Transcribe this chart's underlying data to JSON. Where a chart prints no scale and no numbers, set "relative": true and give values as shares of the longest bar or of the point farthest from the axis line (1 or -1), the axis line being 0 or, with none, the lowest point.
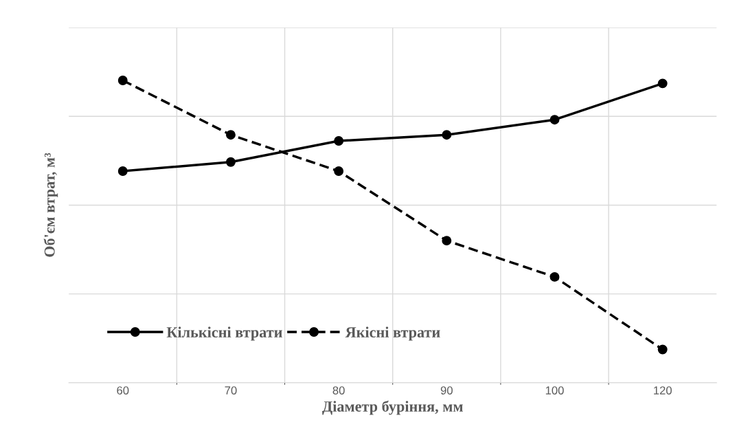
{
  "chart_data": {
    "type": "line",
    "relative": true,
    "xlabel": "Діаметр буріння, мм",
    "ylabel": "Об'єм втрат, м³",
    "categories": [
      "60",
      "70",
      "80",
      "90",
      "100",
      "120"
    ],
    "series": [
      {
        "name": "Кількісні втрати",
        "color": "#000000",
        "line_style": "solid",
        "values": [
          0.7,
          0.73,
          0.8,
          0.82,
          0.87,
          0.99
        ]
      },
      {
        "name": "Якісні втрати",
        "color": "#000000",
        "line_style": "dashed",
        "values": [
          1.0,
          0.82,
          0.7,
          0.47,
          0.35,
          0.11
        ]
      }
    ],
    "marker": "circle",
    "grid": true,
    "legend": "bottom left"
  }
}
